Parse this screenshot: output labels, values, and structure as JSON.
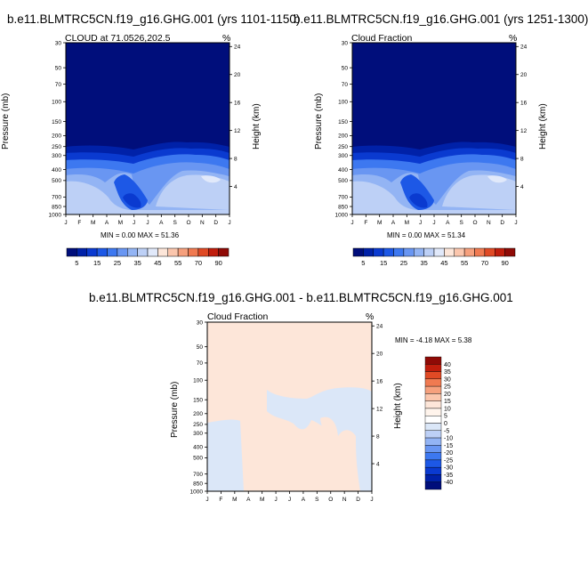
{
  "chart_data": [
    {
      "type": "contour",
      "title": "b.e11.BLMTRC5CN.f19_g16.GHG.001 (yrs 1101-1150)",
      "subtitle_left": "CLOUD at 71.0526,202.5",
      "subtitle_right": "%",
      "ylabel": "Pressure (mb)",
      "ylabel_right": "Height (km)",
      "x_ticks": [
        "J",
        "F",
        "M",
        "A",
        "M",
        "J",
        "J",
        "A",
        "S",
        "O",
        "N",
        "D",
        "J"
      ],
      "y_ticks": [
        "30",
        "50",
        "70",
        "100",
        "150",
        "200",
        "250",
        "300",
        "400",
        "500",
        "700",
        "850",
        "1000"
      ],
      "y_right_ticks": [
        "24",
        "20",
        "16",
        "12",
        "8",
        "4"
      ],
      "min_max": "MIN =   0.00 MAX =  51.36",
      "legend_labels": [
        "5",
        "15",
        "25",
        "35",
        "45",
        "55",
        "70",
        "90"
      ],
      "colors": [
        "#000e7b",
        "#0021a8",
        "#0a3ad0",
        "#1d58e6",
        "#3d78f0",
        "#6996f2",
        "#93b4f4",
        "#bdd0f6",
        "#e1e9fa",
        "#fde6d9",
        "#fbc6ad",
        "#f6a07d",
        "#f07a51",
        "#e04a25",
        "#c01d0c",
        "#8f0a06"
      ]
    },
    {
      "type": "contour",
      "title": "b.e11.BLMTRC5CN.f19_g16.GHG.001 (yrs 1251-1300)",
      "subtitle_left": "Cloud Fraction",
      "subtitle_right": "%",
      "ylabel": "Pressure (mb)",
      "ylabel_right": "Height (km)",
      "x_ticks": [
        "J",
        "F",
        "M",
        "A",
        "M",
        "J",
        "J",
        "A",
        "S",
        "O",
        "N",
        "D",
        "J"
      ],
      "y_ticks": [
        "30",
        "50",
        "70",
        "100",
        "150",
        "200",
        "250",
        "300",
        "400",
        "500",
        "700",
        "850",
        "1000"
      ],
      "y_right_ticks": [
        "24",
        "20",
        "16",
        "12",
        "8",
        "4"
      ],
      "min_max": "MIN =   0.00 MAX =  51.34",
      "legend_labels": [
        "5",
        "15",
        "25",
        "35",
        "45",
        "55",
        "70",
        "90"
      ]
    },
    {
      "type": "contour",
      "title": "b.e11.BLMTRC5CN.f19_g16.GHG.001 - b.e11.BLMTRC5CN.f19_g16.GHG.001",
      "subtitle_left": "Cloud Fraction",
      "subtitle_right": "%",
      "ylabel": "Pressure (mb)",
      "ylabel_right": "Height (km)",
      "x_ticks": [
        "J",
        "F",
        "M",
        "A",
        "M",
        "J",
        "J",
        "A",
        "S",
        "O",
        "N",
        "D",
        "J"
      ],
      "y_ticks": [
        "30",
        "50",
        "70",
        "100",
        "150",
        "200",
        "250",
        "300",
        "400",
        "500",
        "700",
        "850",
        "1000"
      ],
      "y_right_ticks": [
        "24",
        "20",
        "16",
        "12",
        "8",
        "4"
      ],
      "min_max": "MIN =  -4.18 MAX =   5.38",
      "legend_labels": [
        "40",
        "35",
        "30",
        "25",
        "20",
        "15",
        "10",
        "5",
        "0",
        "-5",
        "-10",
        "-15",
        "-20",
        "-25",
        "-30",
        "-35",
        "-40"
      ],
      "colors": [
        "#8f0a06",
        "#c01d0c",
        "#e04a25",
        "#f07a51",
        "#f6a07d",
        "#fbc6ad",
        "#fde6d9",
        "#fff4ec",
        "#ffffff",
        "#dbe7f8",
        "#bdd0f6",
        "#93b4f4",
        "#6996f2",
        "#3d78f0",
        "#1d58e6",
        "#0a3ad0",
        "#0021a8",
        "#000e7b"
      ]
    }
  ]
}
